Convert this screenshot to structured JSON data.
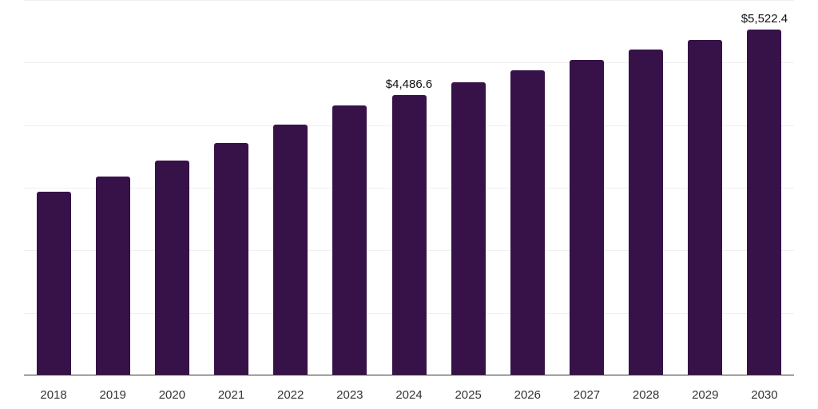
{
  "chart_data": {
    "type": "bar",
    "title": "",
    "xlabel": "",
    "ylabel": "",
    "categories": [
      "2018",
      "2019",
      "2020",
      "2021",
      "2022",
      "2023",
      "2024",
      "2025",
      "2026",
      "2027",
      "2028",
      "2029",
      "2030"
    ],
    "values": [
      2940,
      3183,
      3438,
      3719,
      4013,
      4320,
      4486.6,
      4690,
      4882,
      5048,
      5214,
      5368,
      5522.4
    ],
    "ylim": [
      0,
      6000
    ],
    "grid": true,
    "gridlines": [
      1000,
      2000,
      3000,
      4000,
      5000,
      6000
    ],
    "legend": null,
    "bar_color": "#371249",
    "annotations": [
      {
        "category": "2024",
        "text": "$4,486.6"
      },
      {
        "category": "2030",
        "text": "$5,522.4"
      }
    ]
  }
}
